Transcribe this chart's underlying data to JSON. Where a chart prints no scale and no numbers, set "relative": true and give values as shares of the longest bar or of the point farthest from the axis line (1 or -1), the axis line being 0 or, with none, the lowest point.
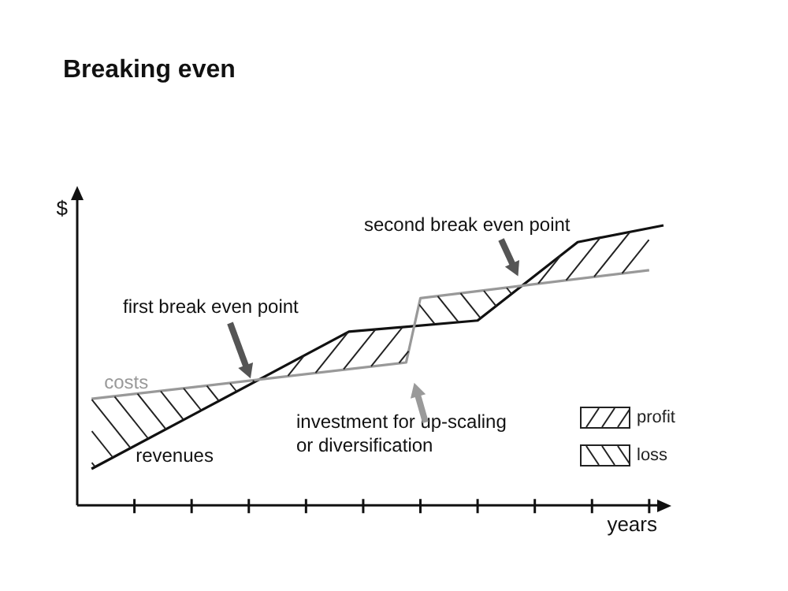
{
  "chart_data": {
    "type": "line",
    "title": "Breaking even",
    "xlabel": "years",
    "ylabel": "$",
    "relative": true,
    "categories": [
      null,
      null,
      null,
      null,
      null,
      null,
      null,
      null,
      null,
      null,
      null,
      null,
      null,
      null,
      null,
      null,
      null,
      null,
      null,
      null,
      null,
      null,
      null,
      null,
      null,
      null,
      null,
      null,
      null,
      null,
      null,
      null,
      null,
      null,
      null,
      null,
      null,
      null,
      null,
      null,
      null,
      null
    ],
    "series": [
      {
        "name": "costs",
        "color": "#999999",
        "values": [
          null,
          0.38,
          null,
          null,
          null,
          null,
          null,
          null,
          null,
          null,
          null,
          null,
          null,
          null,
          null,
          null,
          null,
          null,
          null,
          null,
          null,
          null,
          null,
          0.51,
          0.74,
          null,
          null,
          null,
          null,
          null,
          null,
          null,
          null,
          null,
          null,
          null,
          null,
          null,
          null,
          null,
          0.84,
          null
        ]
      },
      {
        "name": "revenues",
        "color": "#111111",
        "values": [
          null,
          0.13,
          null,
          null,
          null,
          null,
          null,
          null,
          null,
          null,
          null,
          null,
          null,
          null,
          null,
          null,
          null,
          null,
          null,
          0.62,
          null,
          null,
          null,
          null,
          null,
          null,
          null,
          null,
          0.66,
          null,
          null,
          null,
          null,
          null,
          null,
          0.94,
          null,
          null,
          null,
          null,
          null,
          1
        ]
      }
    ],
    "annotations": [
      "first break even point",
      "second break even point",
      "investment for up-scaling\nor diversification",
      "profit",
      "loss"
    ],
    "grid": false,
    "marker": "none",
    "line_style": "solid"
  }
}
